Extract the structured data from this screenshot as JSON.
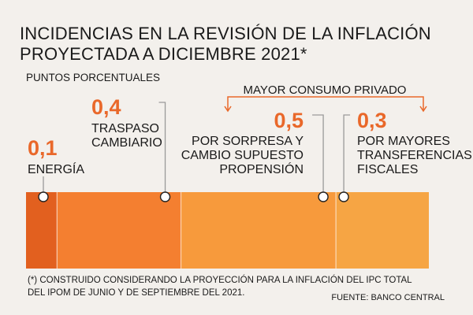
{
  "title_line1": "INCIDENCIAS EN LA REVISIÓN DE LA INFLACIÓN",
  "title_line2": "PROYECTADA A DICIEMBRE 2021*",
  "subtitle": "PUNTOS PORCENTUALES",
  "bracket_label": "MAYOR CONSUMO PRIVADO",
  "footnote_line1": "(*) CONSTRUIDO CONSIDERANDO LA PROYECCIÓN PARA LA INFLACIÓN DEL IPC TOTAL",
  "footnote_line2": "DEL IPOM DE JUNIO Y DE SEPTIEMBRE DEL 2021.",
  "source": "FUENTE: BANCO CENTRAL",
  "colors": {
    "value_text": "#e9682a",
    "seg1": "#e2601f",
    "seg2": "#f47f30",
    "seg3": "#f79a3c",
    "seg4": "#f6a544",
    "connector": "#9a9a9a",
    "bracket": "#e9682a"
  },
  "chart_data": {
    "type": "bar",
    "stacked": true,
    "orientation": "horizontal",
    "total": 1.3,
    "segments": [
      {
        "value_label": "0,1",
        "value": 0.1,
        "label_lines": [
          "ENERGÍA"
        ]
      },
      {
        "value_label": "0,4",
        "value": 0.4,
        "label_lines": [
          "TRASPASO",
          "CAMBIARIO"
        ]
      },
      {
        "value_label": "0,5",
        "value": 0.5,
        "label_lines": [
          "POR SORPRESA Y",
          "CAMBIO SUPUESTO",
          "PROPENSIÓN"
        ]
      },
      {
        "value_label": "0,3",
        "value": 0.3,
        "label_lines": [
          "POR MAYORES",
          "TRANSFERENCIAS",
          "FISCALES"
        ]
      }
    ]
  }
}
